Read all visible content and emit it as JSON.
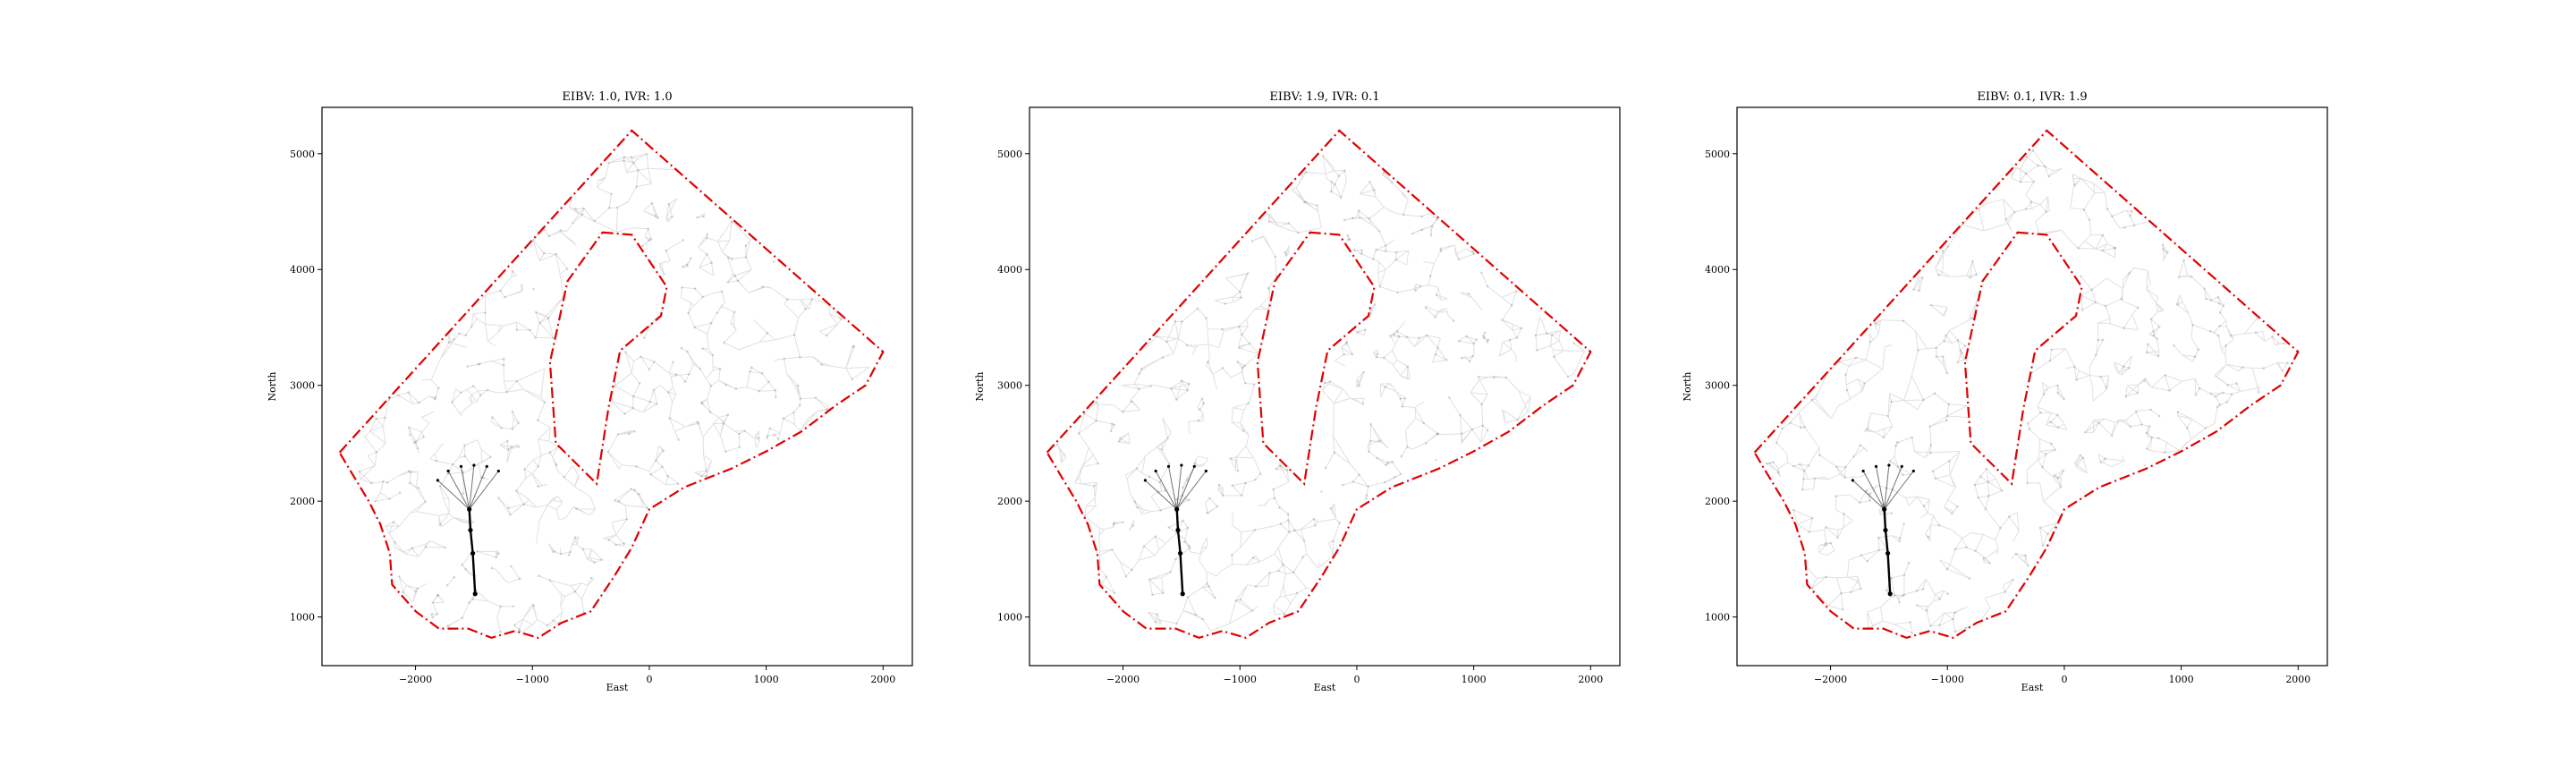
{
  "figure": {
    "panels": [
      {
        "title": "EIBV: 1.0, IVR: 1.0",
        "xlabel": "East",
        "ylabel": "North"
      },
      {
        "title": "EIBV: 1.9, IVR: 0.1",
        "xlabel": "East",
        "ylabel": "North"
      },
      {
        "title": "EIBV: 0.1, IVR: 1.9",
        "xlabel": "East",
        "ylabel": "North"
      }
    ],
    "x_ticks": [
      "−2000",
      "−1000",
      "0",
      "1000",
      "2000"
    ],
    "y_ticks": [
      "1000",
      "2000",
      "3000",
      "4000",
      "5000"
    ]
  },
  "chart_data": [
    {
      "type": "line",
      "title": "EIBV: 1.0, IVR: 1.0",
      "xlabel": "East",
      "ylabel": "North",
      "xlim": [
        -2800,
        2250
      ],
      "ylim": [
        580,
        5400
      ],
      "x_ticks": [
        -2000,
        -1000,
        0,
        1000,
        2000
      ],
      "y_ticks": [
        1000,
        2000,
        3000,
        4000,
        5000
      ],
      "colors": {
        "boundary": "#e00000",
        "paths": "#000000"
      },
      "series": [
        {
          "role": "boundary",
          "style": "red dash-dot",
          "x": [
            -2650,
            -150,
            2000,
            1850,
            1600,
            1300,
            1000,
            700,
            300,
            0,
            -150,
            -300,
            -500,
            -750,
            -950,
            -1150,
            -1350,
            -1550,
            -1800,
            -2000,
            -2200,
            -2220,
            -2300,
            -2400,
            -2550,
            -2650
          ],
          "y": [
            2420,
            5200,
            3290,
            3000,
            2830,
            2600,
            2430,
            2280,
            2120,
            1930,
            1600,
            1350,
            1050,
            950,
            820,
            880,
            820,
            900,
            900,
            1050,
            1280,
            1550,
            1800,
            2000,
            2250,
            2420
          ]
        },
        {
          "role": "boundary",
          "style": "red dash-dot",
          "x": [
            -400,
            -150,
            150,
            100,
            -250,
            -350,
            -450,
            -800,
            -850,
            -700,
            -400
          ],
          "y": [
            4320,
            4300,
            3850,
            3600,
            3300,
            2800,
            2150,
            2500,
            3200,
            3900,
            4320
          ]
        },
        {
          "role": "trajectory",
          "style": "black solid",
          "x": [
            -1490,
            -1510,
            -1530,
            -1540
          ],
          "y": [
            1200,
            1550,
            1750,
            1930
          ]
        },
        {
          "role": "candidate-fan",
          "style": "black thin",
          "x": [
            -1810,
            -1720,
            -1610,
            -1500,
            -1390,
            -1290
          ],
          "y": [
            2180,
            2260,
            2300,
            2310,
            2300,
            2260
          ]
        }
      ]
    },
    {
      "type": "line",
      "title": "EIBV: 1.9, IVR: 0.1",
      "xlabel": "East",
      "ylabel": "North",
      "xlim": [
        -2800,
        2250
      ],
      "ylim": [
        580,
        5400
      ],
      "x_ticks": [
        -2000,
        -1000,
        0,
        1000,
        2000
      ],
      "y_ticks": [
        1000,
        2000,
        3000,
        4000,
        5000
      ],
      "colors": {
        "boundary": "#e00000",
        "paths": "#000000"
      },
      "series": [
        {
          "role": "boundary",
          "style": "red dash-dot",
          "x": [
            -2650,
            -150,
            2000,
            1850,
            1600,
            1300,
            1000,
            700,
            300,
            0,
            -150,
            -300,
            -500,
            -750,
            -950,
            -1150,
            -1350,
            -1550,
            -1800,
            -2000,
            -2200,
            -2220,
            -2300,
            -2400,
            -2550,
            -2650
          ],
          "y": [
            2420,
            5200,
            3290,
            3000,
            2830,
            2600,
            2430,
            2280,
            2120,
            1930,
            1600,
            1350,
            1050,
            950,
            820,
            880,
            820,
            900,
            900,
            1050,
            1280,
            1550,
            1800,
            2000,
            2250,
            2420
          ]
        },
        {
          "role": "boundary",
          "style": "red dash-dot",
          "x": [
            -400,
            -150,
            150,
            100,
            -250,
            -350,
            -450,
            -800,
            -850,
            -700,
            -400
          ],
          "y": [
            4320,
            4300,
            3850,
            3600,
            3300,
            2800,
            2150,
            2500,
            3200,
            3900,
            4320
          ]
        },
        {
          "role": "trajectory",
          "style": "black solid",
          "x": [
            -1490,
            -1510,
            -1530,
            -1540
          ],
          "y": [
            1200,
            1550,
            1750,
            1930
          ]
        },
        {
          "role": "candidate-fan",
          "style": "black thin",
          "x": [
            -1810,
            -1720,
            -1610,
            -1500,
            -1390,
            -1290
          ],
          "y": [
            2180,
            2260,
            2300,
            2310,
            2300,
            2260
          ]
        }
      ]
    },
    {
      "type": "line",
      "title": "EIBV: 0.1, IVR: 1.9",
      "xlabel": "East",
      "ylabel": "North",
      "xlim": [
        -2800,
        2250
      ],
      "ylim": [
        580,
        5400
      ],
      "x_ticks": [
        -2000,
        -1000,
        0,
        1000,
        2000
      ],
      "y_ticks": [
        1000,
        2000,
        3000,
        4000,
        5000
      ],
      "colors": {
        "boundary": "#e00000",
        "paths": "#000000"
      },
      "series": [
        {
          "role": "boundary",
          "style": "red dash-dot",
          "x": [
            -2650,
            -150,
            2000,
            1850,
            1600,
            1300,
            1000,
            700,
            300,
            0,
            -150,
            -300,
            -500,
            -750,
            -950,
            -1150,
            -1350,
            -1550,
            -1800,
            -2000,
            -2200,
            -2220,
            -2300,
            -2400,
            -2550,
            -2650
          ],
          "y": [
            2420,
            5200,
            3290,
            3000,
            2830,
            2600,
            2430,
            2280,
            2120,
            1930,
            1600,
            1350,
            1050,
            950,
            820,
            880,
            820,
            900,
            900,
            1050,
            1280,
            1550,
            1800,
            2000,
            2250,
            2420
          ]
        },
        {
          "role": "boundary",
          "style": "red dash-dot",
          "x": [
            -400,
            -150,
            150,
            100,
            -250,
            -350,
            -450,
            -800,
            -850,
            -700,
            -400
          ],
          "y": [
            4320,
            4300,
            3850,
            3600,
            3300,
            2800,
            2150,
            2500,
            3200,
            3900,
            4320
          ]
        },
        {
          "role": "trajectory",
          "style": "black solid",
          "x": [
            -1490,
            -1510,
            -1530,
            -1540
          ],
          "y": [
            1200,
            1550,
            1750,
            1930
          ]
        },
        {
          "role": "candidate-fan",
          "style": "black thin",
          "x": [
            -1810,
            -1720,
            -1610,
            -1500,
            -1390,
            -1290
          ],
          "y": [
            2180,
            2260,
            2300,
            2310,
            2300,
            2260
          ]
        }
      ]
    }
  ]
}
